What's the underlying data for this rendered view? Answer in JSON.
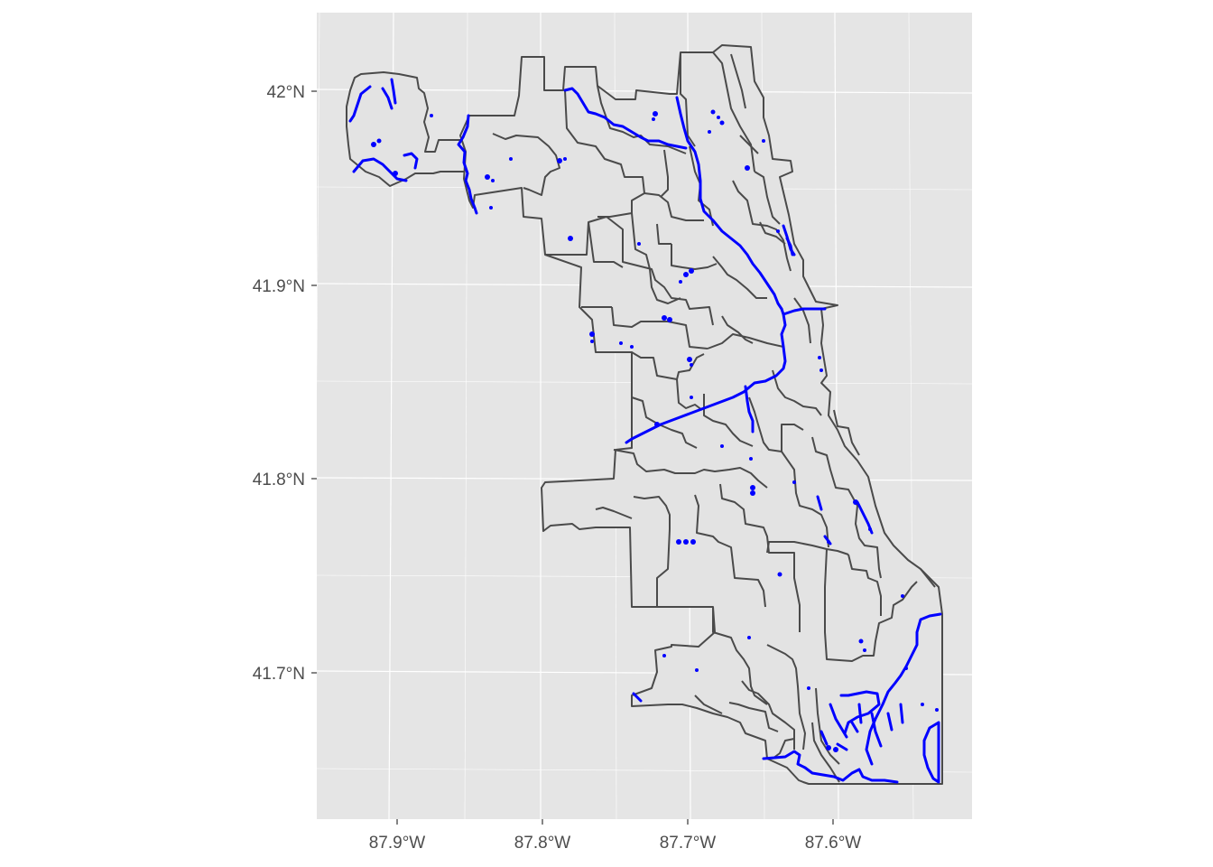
{
  "map": {
    "projection": "geographic",
    "panel_background": "#e5e5e5",
    "gridline_color": "#ffffff",
    "boundary_color": "#4a4a4a",
    "water_color": "#0000ff",
    "x_axis": {
      "ticks": [
        {
          "value": -87.9,
          "label": "87.9°W"
        },
        {
          "value": -87.8,
          "label": "87.8°W"
        },
        {
          "value": -87.7,
          "label": "87.7°W"
        },
        {
          "value": -87.6,
          "label": "87.6°W"
        }
      ]
    },
    "y_axis": {
      "ticks": [
        {
          "value": 42.0,
          "label": "42°N"
        },
        {
          "value": 41.9,
          "label": "41.9°N"
        },
        {
          "value": 41.8,
          "label": "41.8°N"
        },
        {
          "value": 41.7,
          "label": "41.7°N"
        }
      ]
    },
    "layers": [
      "district boundaries",
      "waterways"
    ]
  }
}
